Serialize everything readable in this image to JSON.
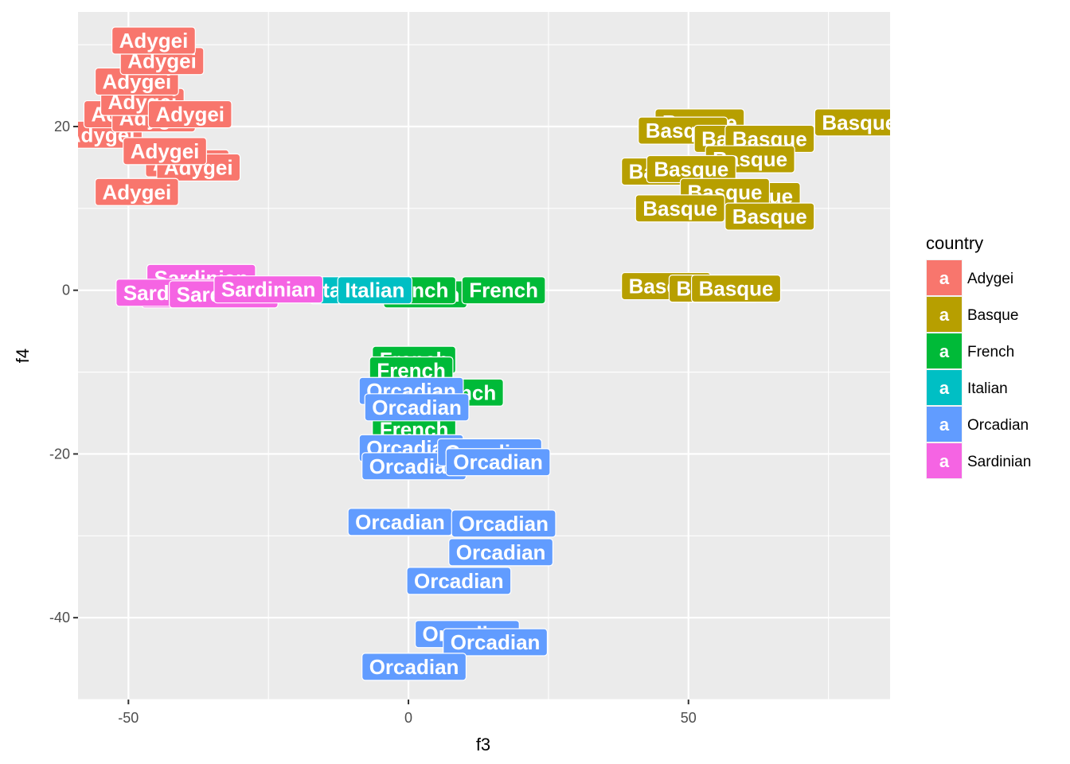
{
  "chart_data": {
    "type": "scatter",
    "subtype": "labelled points",
    "xlabel": "f3",
    "ylabel": "f4",
    "xlim": [
      -59,
      86
    ],
    "ylim": [
      -50,
      34
    ],
    "x_ticks": [
      -50,
      0,
      50
    ],
    "x_tick_labels": [
      "-50",
      "0",
      "50"
    ],
    "y_ticks": [
      -40,
      -20,
      0,
      20
    ],
    "y_tick_labels": [
      "-40",
      "-20",
      "0",
      "20"
    ],
    "grid": true,
    "legend": {
      "title": "country",
      "position": "right",
      "key_glyph": "a",
      "entries": [
        "Adygei",
        "Basque",
        "French",
        "Italian",
        "Orcadian",
        "Sardinian"
      ]
    },
    "colors": {
      "Adygei": "#F8766D",
      "Basque": "#B79F00",
      "French": "#00BA38",
      "Italian": "#00BFC4",
      "Orcadian": "#619CFF",
      "Sardinian": "#F564E3"
    },
    "points": [
      {
        "country": "Adygei",
        "x": -55,
        "y": 19
      },
      {
        "country": "Adygei",
        "x": -50.5,
        "y": 21.5
      },
      {
        "country": "Adygei",
        "x": -45.5,
        "y": 21
      },
      {
        "country": "Adygei",
        "x": -47.5,
        "y": 23
      },
      {
        "country": "Adygei",
        "x": -39,
        "y": 21.5
      },
      {
        "country": "Adygei",
        "x": -39.5,
        "y": 15.5
      },
      {
        "country": "Adygei",
        "x": -37.5,
        "y": 15
      },
      {
        "country": "Adygei",
        "x": -43.5,
        "y": 17
      },
      {
        "country": "Adygei",
        "x": -48.5,
        "y": 25.5
      },
      {
        "country": "Adygei",
        "x": -44,
        "y": 28
      },
      {
        "country": "Adygei",
        "x": -45.5,
        "y": 30.5
      },
      {
        "country": "Adygei",
        "x": -48.5,
        "y": 12
      },
      {
        "country": "Basque",
        "x": 52,
        "y": 20.5
      },
      {
        "country": "Basque",
        "x": 49,
        "y": 19.5
      },
      {
        "country": "Basque",
        "x": 59,
        "y": 18.5
      },
      {
        "country": "Basque",
        "x": 64.5,
        "y": 18.5
      },
      {
        "country": "Basque",
        "x": 80.5,
        "y": 20.5
      },
      {
        "country": "Basque",
        "x": 61,
        "y": 16
      },
      {
        "country": "Basque",
        "x": 46,
        "y": 14.5
      },
      {
        "country": "Basque",
        "x": 50.5,
        "y": 14.8
      },
      {
        "country": "Basque",
        "x": 62,
        "y": 11.5
      },
      {
        "country": "Basque",
        "x": 56.5,
        "y": 12
      },
      {
        "country": "Basque",
        "x": 48.5,
        "y": 10
      },
      {
        "country": "Basque",
        "x": 64.5,
        "y": 9
      },
      {
        "country": "Basque",
        "x": 46,
        "y": 0.5
      },
      {
        "country": "Basque",
        "x": 54.5,
        "y": 0.2
      },
      {
        "country": "Basque",
        "x": 58.5,
        "y": 0.2
      },
      {
        "country": "French",
        "x": 3,
        "y": -0.5
      },
      {
        "country": "French",
        "x": 1,
        "y": 0
      },
      {
        "country": "French",
        "x": 17,
        "y": 0
      },
      {
        "country": "French",
        "x": 1,
        "y": -8.5
      },
      {
        "country": "French",
        "x": 0.5,
        "y": -9.8
      },
      {
        "country": "French",
        "x": 9.5,
        "y": -12.5
      },
      {
        "country": "French",
        "x": 1,
        "y": -17
      },
      {
        "country": "Italian",
        "x": -11,
        "y": 0
      },
      {
        "country": "Italian",
        "x": -6,
        "y": 0
      },
      {
        "country": "Orcadian",
        "x": 0.5,
        "y": -12.3
      },
      {
        "country": "Orcadian",
        "x": 1.5,
        "y": -14.3
      },
      {
        "country": "Orcadian",
        "x": 0.5,
        "y": -19.3
      },
      {
        "country": "Orcadian",
        "x": 1,
        "y": -21.5
      },
      {
        "country": "Orcadian",
        "x": 14.5,
        "y": -19.8
      },
      {
        "country": "Orcadian",
        "x": 16,
        "y": -21
      },
      {
        "country": "Orcadian",
        "x": -1.5,
        "y": -28.3
      },
      {
        "country": "Orcadian",
        "x": 17,
        "y": -28.5
      },
      {
        "country": "Orcadian",
        "x": 16.5,
        "y": -32
      },
      {
        "country": "Orcadian",
        "x": 9,
        "y": -35.5
      },
      {
        "country": "Orcadian",
        "x": 10.5,
        "y": -42
      },
      {
        "country": "Orcadian",
        "x": 15.5,
        "y": -43
      },
      {
        "country": "Orcadian",
        "x": 1,
        "y": -46
      },
      {
        "country": "Sardinian",
        "x": -37,
        "y": 1.5
      },
      {
        "country": "Sardinian",
        "x": -38,
        "y": -0.5
      },
      {
        "country": "Sardinian",
        "x": -42.5,
        "y": -0.3
      },
      {
        "country": "Sardinian",
        "x": -33,
        "y": -0.5
      },
      {
        "country": "Sardinian",
        "x": -25,
        "y": 0.1
      }
    ]
  }
}
